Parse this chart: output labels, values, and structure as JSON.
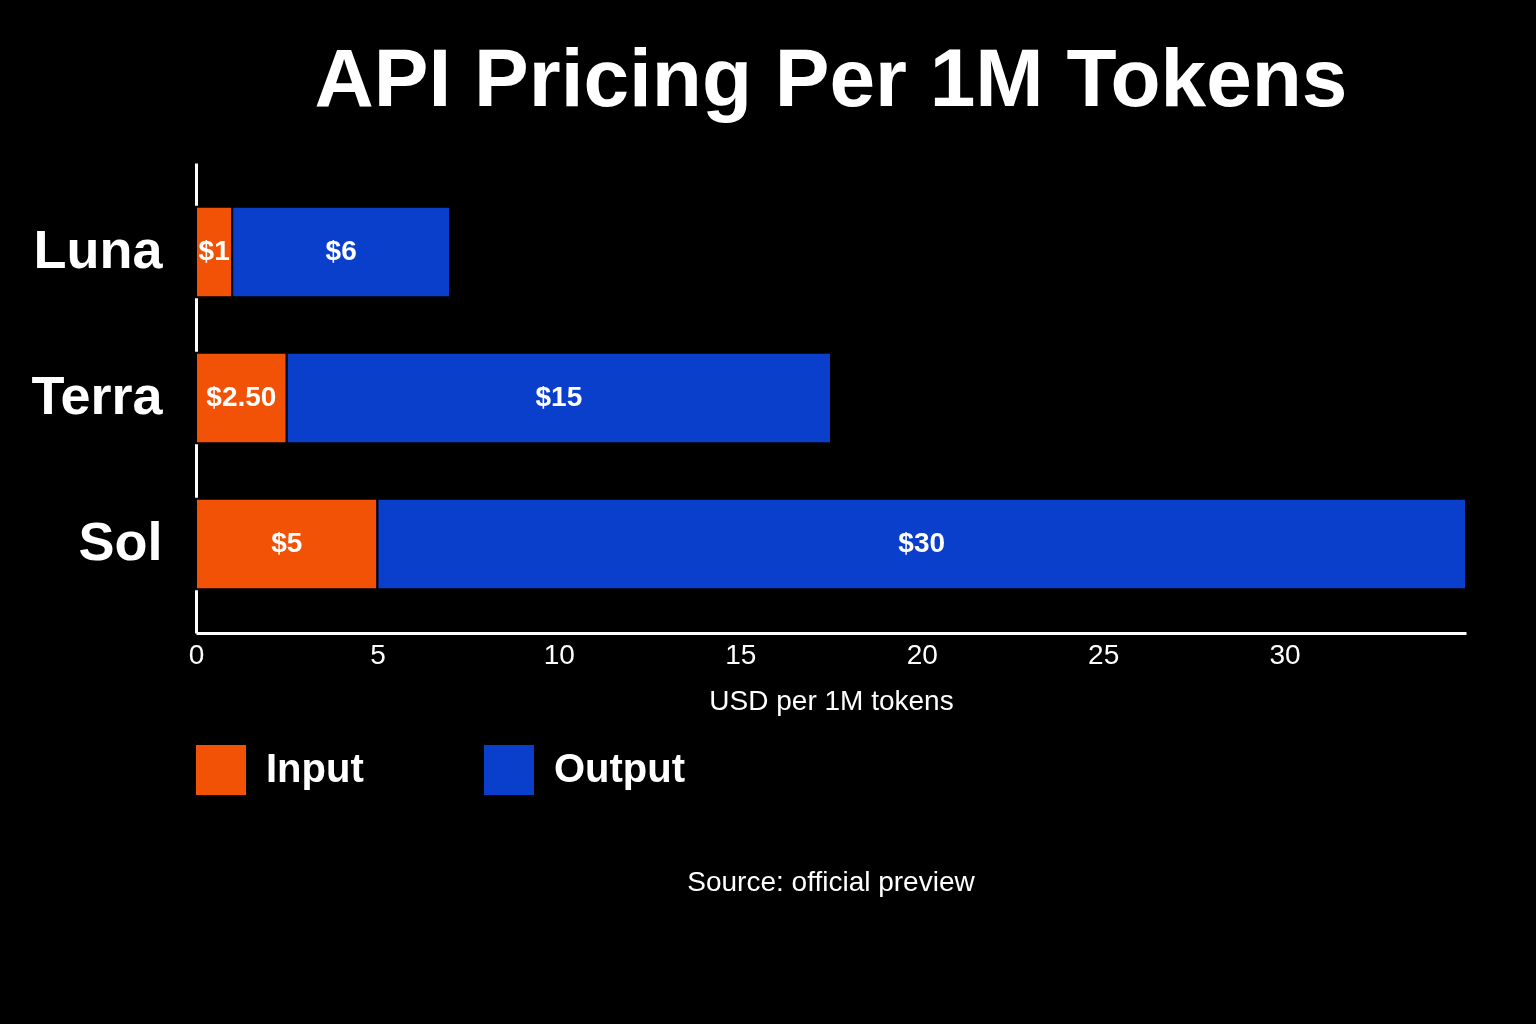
{
  "chart_data": {
    "type": "bar",
    "orientation": "horizontal",
    "stacked": true,
    "title": "API Pricing Per 1M Tokens",
    "xlabel": "USD per 1M tokens",
    "categories": [
      "Luna",
      "Terra",
      "Sol"
    ],
    "series": [
      {
        "name": "Input",
        "color": "#f25205",
        "values": [
          1,
          2.5,
          5
        ],
        "value_labels": [
          "$1",
          "$2.50",
          "$5"
        ]
      },
      {
        "name": "Output",
        "color": "#0a3fcc",
        "values": [
          6,
          15,
          30
        ],
        "value_labels": [
          "$6",
          "$15",
          "$30"
        ]
      }
    ],
    "xlim": [
      0,
      35
    ],
    "xticks": [
      0,
      5,
      10,
      15,
      20,
      25,
      30
    ],
    "grid": false,
    "legend": "bottom",
    "annotations": [
      "Source: official preview"
    ]
  }
}
